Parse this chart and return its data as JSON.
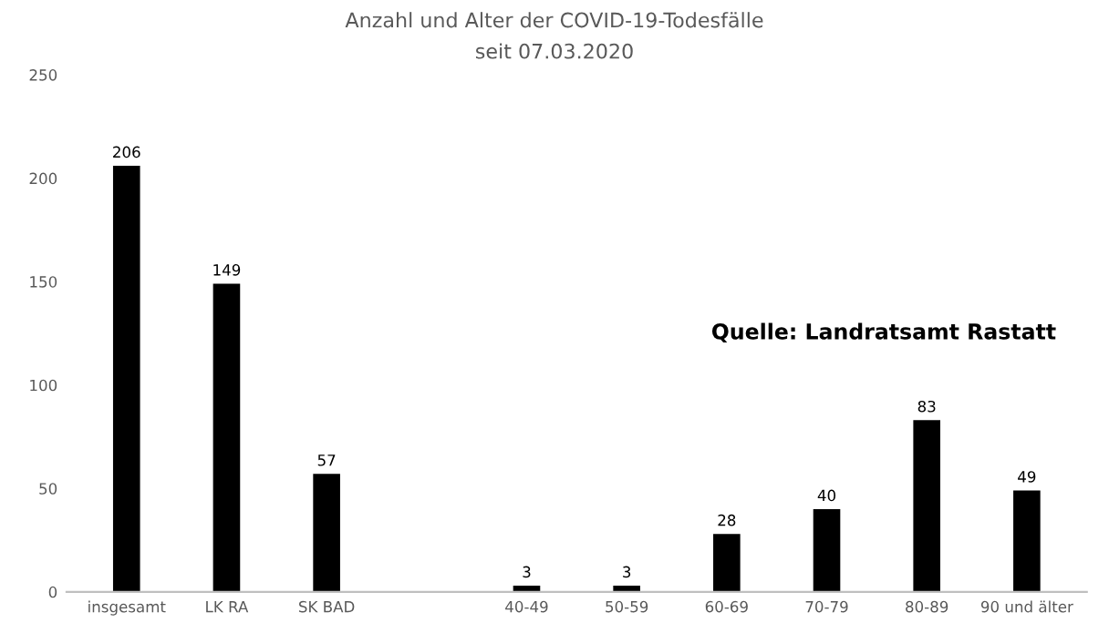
{
  "chart_data": {
    "type": "bar",
    "title": "Anzahl und Alter der COVID-19-Todesfälle",
    "subtitle": "seit 07.03.2020",
    "categories": [
      "insgesamt",
      "LK RA",
      "SK BAD",
      null,
      "40-49",
      "50-59",
      "60-69",
      "70-79",
      "80-89",
      "90 und älter"
    ],
    "values": [
      206,
      149,
      57,
      null,
      3,
      3,
      28,
      40,
      83,
      49
    ],
    "color": "#000000",
    "ylim": [
      0,
      250
    ],
    "yticks": [
      0,
      50,
      100,
      150,
      200,
      250
    ],
    "data_labels": true,
    "annotations": [
      "Quelle: Landratsamt Rastatt"
    ]
  }
}
